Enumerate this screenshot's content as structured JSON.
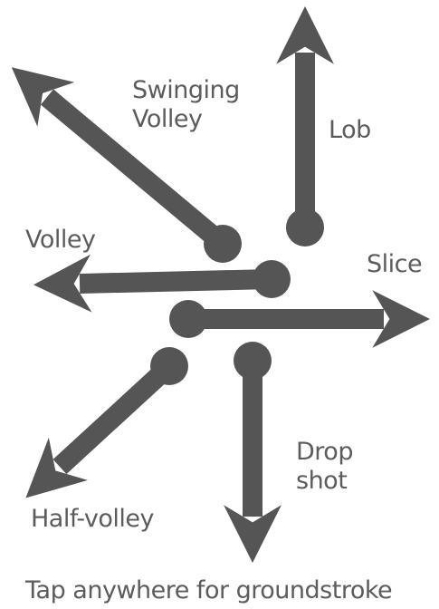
{
  "colors": {
    "arrow": "#555555",
    "text": "#5c5c5c",
    "background": "#ffffff"
  },
  "shots": {
    "swinging_volley": {
      "line1": "Swinging",
      "line2": "Volley"
    },
    "lob": "Lob",
    "volley": "Volley",
    "slice": "Slice",
    "drop_shot": {
      "line1": "Drop",
      "line2": "shot"
    },
    "half_volley": "Half-volley"
  },
  "footer": "Tap anywhere for groundstroke"
}
